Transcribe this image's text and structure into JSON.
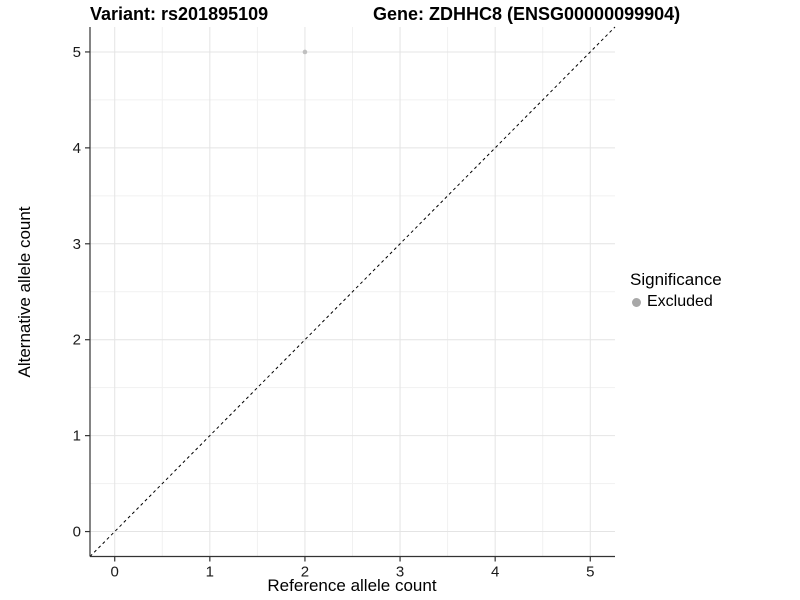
{
  "chart_data": {
    "type": "scatter",
    "title_left": "Variant: rs201895109",
    "title_right": "Gene: ZDHHC8 (ENSG00000099904)",
    "xlabel": "Reference allele count",
    "ylabel": "Alternative allele count",
    "xlim": [
      -0.26,
      5.26
    ],
    "ylim": [
      -0.26,
      5.26
    ],
    "x_ticks": [
      0,
      1,
      2,
      3,
      4,
      5
    ],
    "y_ticks": [
      0,
      1,
      2,
      3,
      4,
      5
    ],
    "x_minor_ticks": [
      0.5,
      1.5,
      2.5,
      3.5,
      4.5
    ],
    "y_minor_ticks": [
      0.5,
      1.5,
      2.5,
      3.5,
      4.5
    ],
    "grid": "major+minor",
    "identity_line": {
      "style": "dashed",
      "from": [
        -0.26,
        -0.26
      ],
      "to": [
        5.26,
        5.26
      ],
      "color": "#000000"
    },
    "series": [
      {
        "name": "Excluded",
        "color": "#c0c0c0",
        "point_radius": 2.3,
        "points": [
          [
            2,
            5
          ]
        ]
      }
    ],
    "legend": {
      "position": "right",
      "title": "Significance",
      "items": [
        {
          "label": "Excluded",
          "color": "#a8a8a8",
          "marker": "circle"
        }
      ]
    },
    "colors": {
      "background": "#ffffff",
      "grid_major": "#e4e4e4",
      "grid_minor": "#f1f1f1",
      "axis_line": "#333333",
      "tick_mark": "#333333"
    }
  }
}
